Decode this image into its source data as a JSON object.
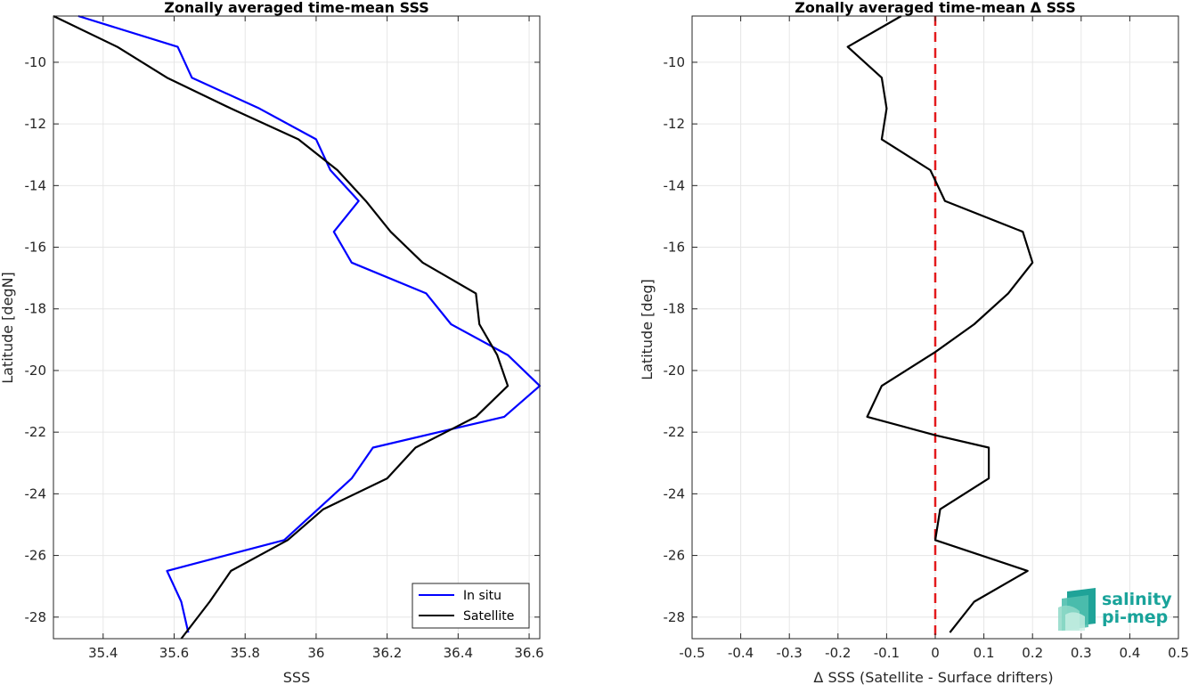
{
  "chart_data": [
    {
      "type": "line",
      "title": "Zonally averaged time-mean SSS",
      "xlabel": "SSS",
      "ylabel": "Latitude [degN]",
      "xlim": [
        35.26,
        36.63
      ],
      "ylim": [
        -28.7,
        -8.5
      ],
      "xticks": [
        35.4,
        35.6,
        35.8,
        36,
        36.2,
        36.4,
        36.6
      ],
      "xtick_labels": [
        "35.4",
        "35.6",
        "35.8",
        "36",
        "36.2",
        "36.4",
        "36.6"
      ],
      "yticks": [
        -10,
        -12,
        -14,
        -16,
        -18,
        -20,
        -22,
        -24,
        -26,
        -28
      ],
      "ytick_labels": [
        "-10",
        "-12",
        "-14",
        "-16",
        "-18",
        "-20",
        "-22",
        "-24",
        "-26",
        "-28"
      ],
      "grid": true,
      "legend": "bottom-right",
      "series": [
        {
          "name": "In situ",
          "color": "#0000ff",
          "x": [
            35.33,
            35.61,
            35.65,
            35.84,
            36.0,
            36.04,
            36.12,
            36.05,
            36.1,
            36.31,
            36.38,
            36.54,
            36.63,
            36.53,
            36.16,
            36.1,
            35.91,
            35.58,
            35.62,
            35.64
          ],
          "y": [
            -8.5,
            -9.5,
            -10.5,
            -11.5,
            -12.5,
            -13.5,
            -14.5,
            -15.5,
            -16.5,
            -17.5,
            -18.5,
            -19.5,
            -20.5,
            -21.5,
            -22.5,
            -23.5,
            -25.5,
            -26.5,
            -27.5,
            -28.5
          ]
        },
        {
          "name": "Satellite",
          "color": "#000000",
          "x": [
            35.26,
            35.44,
            35.58,
            35.76,
            35.95,
            36.06,
            36.14,
            36.21,
            36.3,
            36.45,
            36.46,
            36.51,
            36.54,
            36.45,
            36.28,
            36.2,
            36.02,
            35.92,
            35.76,
            35.7,
            35.62
          ],
          "y": [
            -8.5,
            -9.5,
            -10.5,
            -11.5,
            -12.5,
            -13.5,
            -14.5,
            -15.5,
            -16.5,
            -17.5,
            -18.5,
            -19.5,
            -20.5,
            -21.5,
            -22.5,
            -23.5,
            -24.5,
            -25.5,
            -26.5,
            -27.5,
            -28.7
          ]
        }
      ]
    },
    {
      "type": "line",
      "title": "Zonally averaged time-mean Δ SSS",
      "xlabel": "Δ SSS (Satellite - Surface drifters)",
      "ylabel": "Latitude [deg]",
      "xlim": [
        -0.5,
        0.5
      ],
      "ylim": [
        -28.7,
        -8.5
      ],
      "xticks": [
        -0.5,
        -0.4,
        -0.3,
        -0.2,
        -0.1,
        0,
        0.1,
        0.2,
        0.3,
        0.4,
        0.5
      ],
      "xtick_labels": [
        "-0.5",
        "-0.4",
        "-0.3",
        "-0.2",
        "-0.1",
        "0",
        "0.1",
        "0.2",
        "0.3",
        "0.4",
        "0.5"
      ],
      "yticks": [
        -10,
        -12,
        -14,
        -16,
        -18,
        -20,
        -22,
        -24,
        -26,
        -28
      ],
      "ytick_labels": [
        "-10",
        "-12",
        "-14",
        "-16",
        "-18",
        "-20",
        "-22",
        "-24",
        "-26",
        "-28"
      ],
      "grid": true,
      "reference_line": {
        "x": 0,
        "color": "#e31a1c",
        "style": "dashed"
      },
      "series": [
        {
          "color": "#000000",
          "x": [
            -0.07,
            -0.18,
            -0.11,
            -0.1,
            -0.11,
            -0.01,
            0.02,
            0.18,
            0.2,
            0.15,
            0.08,
            0.0,
            -0.11,
            -0.14,
            0.0,
            0.11,
            0.11,
            0.01,
            0.0,
            0.19,
            0.08,
            0.03
          ],
          "y": [
            -8.5,
            -9.5,
            -10.5,
            -11.5,
            -12.5,
            -13.5,
            -14.5,
            -15.5,
            -16.5,
            -17.5,
            -18.5,
            -19.4,
            -20.5,
            -21.5,
            -22.1,
            -22.5,
            -23.5,
            -24.5,
            -25.5,
            -26.5,
            -27.5,
            -28.5
          ]
        }
      ]
    }
  ],
  "logo": {
    "line1": "salinity",
    "line2": "pi-mep"
  }
}
